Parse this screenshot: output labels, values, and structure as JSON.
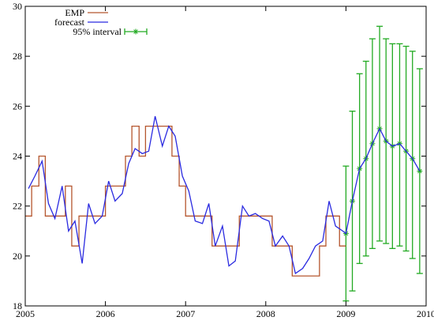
{
  "chart_data": {
    "type": "line",
    "title": "",
    "xlabel": "",
    "ylabel": "",
    "xlim": [
      2005,
      2010
    ],
    "ylim": [
      18,
      30
    ],
    "x_ticks": [
      2005,
      2006,
      2007,
      2008,
      2009,
      2010
    ],
    "x_tick_labels": [
      "2005",
      "2006",
      "2007",
      "2008",
      "2009",
      "2010"
    ],
    "y_ticks": [
      18,
      20,
      22,
      24,
      26,
      28,
      30
    ],
    "y_tick_labels": [
      "18",
      "20",
      "22",
      "24",
      "26",
      "28",
      "30"
    ],
    "grid": false,
    "legend_position": "top-left",
    "series": [
      {
        "name": "EMP",
        "color": "#b5562e",
        "style": "step",
        "x": [
          2005.0,
          2005.08,
          2005.17,
          2005.25,
          2005.33,
          2005.42,
          2005.5,
          2005.58,
          2005.67,
          2005.75,
          2005.83,
          2005.92,
          2006.0,
          2006.08,
          2006.17,
          2006.25,
          2006.33,
          2006.42,
          2006.5,
          2006.58,
          2006.67,
          2006.75,
          2006.83,
          2006.92,
          2007.0,
          2007.08,
          2007.17,
          2007.25,
          2007.33,
          2007.42,
          2007.5,
          2007.58,
          2007.67,
          2007.75,
          2007.83,
          2007.92,
          2008.0,
          2008.08,
          2008.17,
          2008.25,
          2008.33,
          2008.42,
          2008.5,
          2008.58,
          2008.67,
          2008.75,
          2008.83,
          2008.92
        ],
        "y": [
          21.6,
          22.8,
          24.0,
          21.6,
          21.6,
          21.6,
          22.8,
          20.4,
          21.6,
          21.6,
          21.6,
          21.6,
          22.8,
          22.8,
          22.8,
          24.0,
          25.2,
          24.0,
          25.2,
          25.2,
          25.2,
          25.2,
          24.0,
          22.8,
          21.6,
          21.6,
          21.6,
          21.6,
          20.4,
          20.4,
          20.4,
          20.4,
          21.6,
          21.6,
          21.6,
          21.6,
          21.6,
          20.4,
          20.4,
          20.4,
          19.2,
          19.2,
          19.2,
          19.2,
          20.4,
          21.6,
          21.6,
          20.4
        ]
      },
      {
        "name": "forecast",
        "color": "#2a2ae0",
        "style": "line",
        "x": [
          2005.04,
          2005.12,
          2005.21,
          2005.29,
          2005.37,
          2005.46,
          2005.54,
          2005.62,
          2005.71,
          2005.79,
          2005.87,
          2005.96,
          2006.04,
          2006.12,
          2006.21,
          2006.29,
          2006.37,
          2006.46,
          2006.54,
          2006.62,
          2006.71,
          2006.79,
          2006.87,
          2006.96,
          2007.04,
          2007.12,
          2007.21,
          2007.29,
          2007.37,
          2007.46,
          2007.54,
          2007.62,
          2007.71,
          2007.79,
          2007.87,
          2007.96,
          2008.04,
          2008.12,
          2008.21,
          2008.29,
          2008.37,
          2008.46,
          2008.54,
          2008.62,
          2008.71,
          2008.79,
          2008.87,
          2008.96,
          2009.0,
          2009.08,
          2009.17,
          2009.25,
          2009.33,
          2009.42,
          2009.5,
          2009.58,
          2009.67,
          2009.75,
          2009.83,
          2009.92
        ],
        "y": [
          22.7,
          23.2,
          23.8,
          22.1,
          21.5,
          22.8,
          21.0,
          21.4,
          19.7,
          22.1,
          21.3,
          21.6,
          23.0,
          22.2,
          22.5,
          23.7,
          24.3,
          24.1,
          24.2,
          25.6,
          24.4,
          25.2,
          24.8,
          23.2,
          22.6,
          21.4,
          21.3,
          22.1,
          20.4,
          21.2,
          19.6,
          19.8,
          22.0,
          21.6,
          21.7,
          21.5,
          21.4,
          20.4,
          20.8,
          20.4,
          19.3,
          19.5,
          19.9,
          20.4,
          20.6,
          22.2,
          21.2,
          21.0,
          20.9,
          22.2,
          23.5,
          23.9,
          24.5,
          25.1,
          24.6,
          24.4,
          24.5,
          24.2,
          23.9,
          23.4
        ]
      },
      {
        "name": "95% interval",
        "color": "#22aa22",
        "style": "errorbars",
        "x": [
          2009.0,
          2009.08,
          2009.17,
          2009.25,
          2009.33,
          2009.42,
          2009.5,
          2009.58,
          2009.67,
          2009.75,
          2009.83,
          2009.92
        ],
        "y": [
          20.9,
          22.2,
          23.5,
          23.9,
          24.5,
          25.1,
          24.6,
          24.4,
          24.5,
          24.2,
          23.9,
          23.4
        ],
        "low": [
          18.2,
          18.6,
          19.7,
          20.0,
          20.3,
          20.6,
          20.5,
          20.3,
          20.4,
          20.2,
          19.9,
          19.3
        ],
        "high": [
          23.6,
          25.8,
          27.3,
          27.8,
          28.7,
          29.2,
          28.7,
          28.5,
          28.5,
          28.4,
          28.2,
          27.5
        ]
      }
    ]
  }
}
